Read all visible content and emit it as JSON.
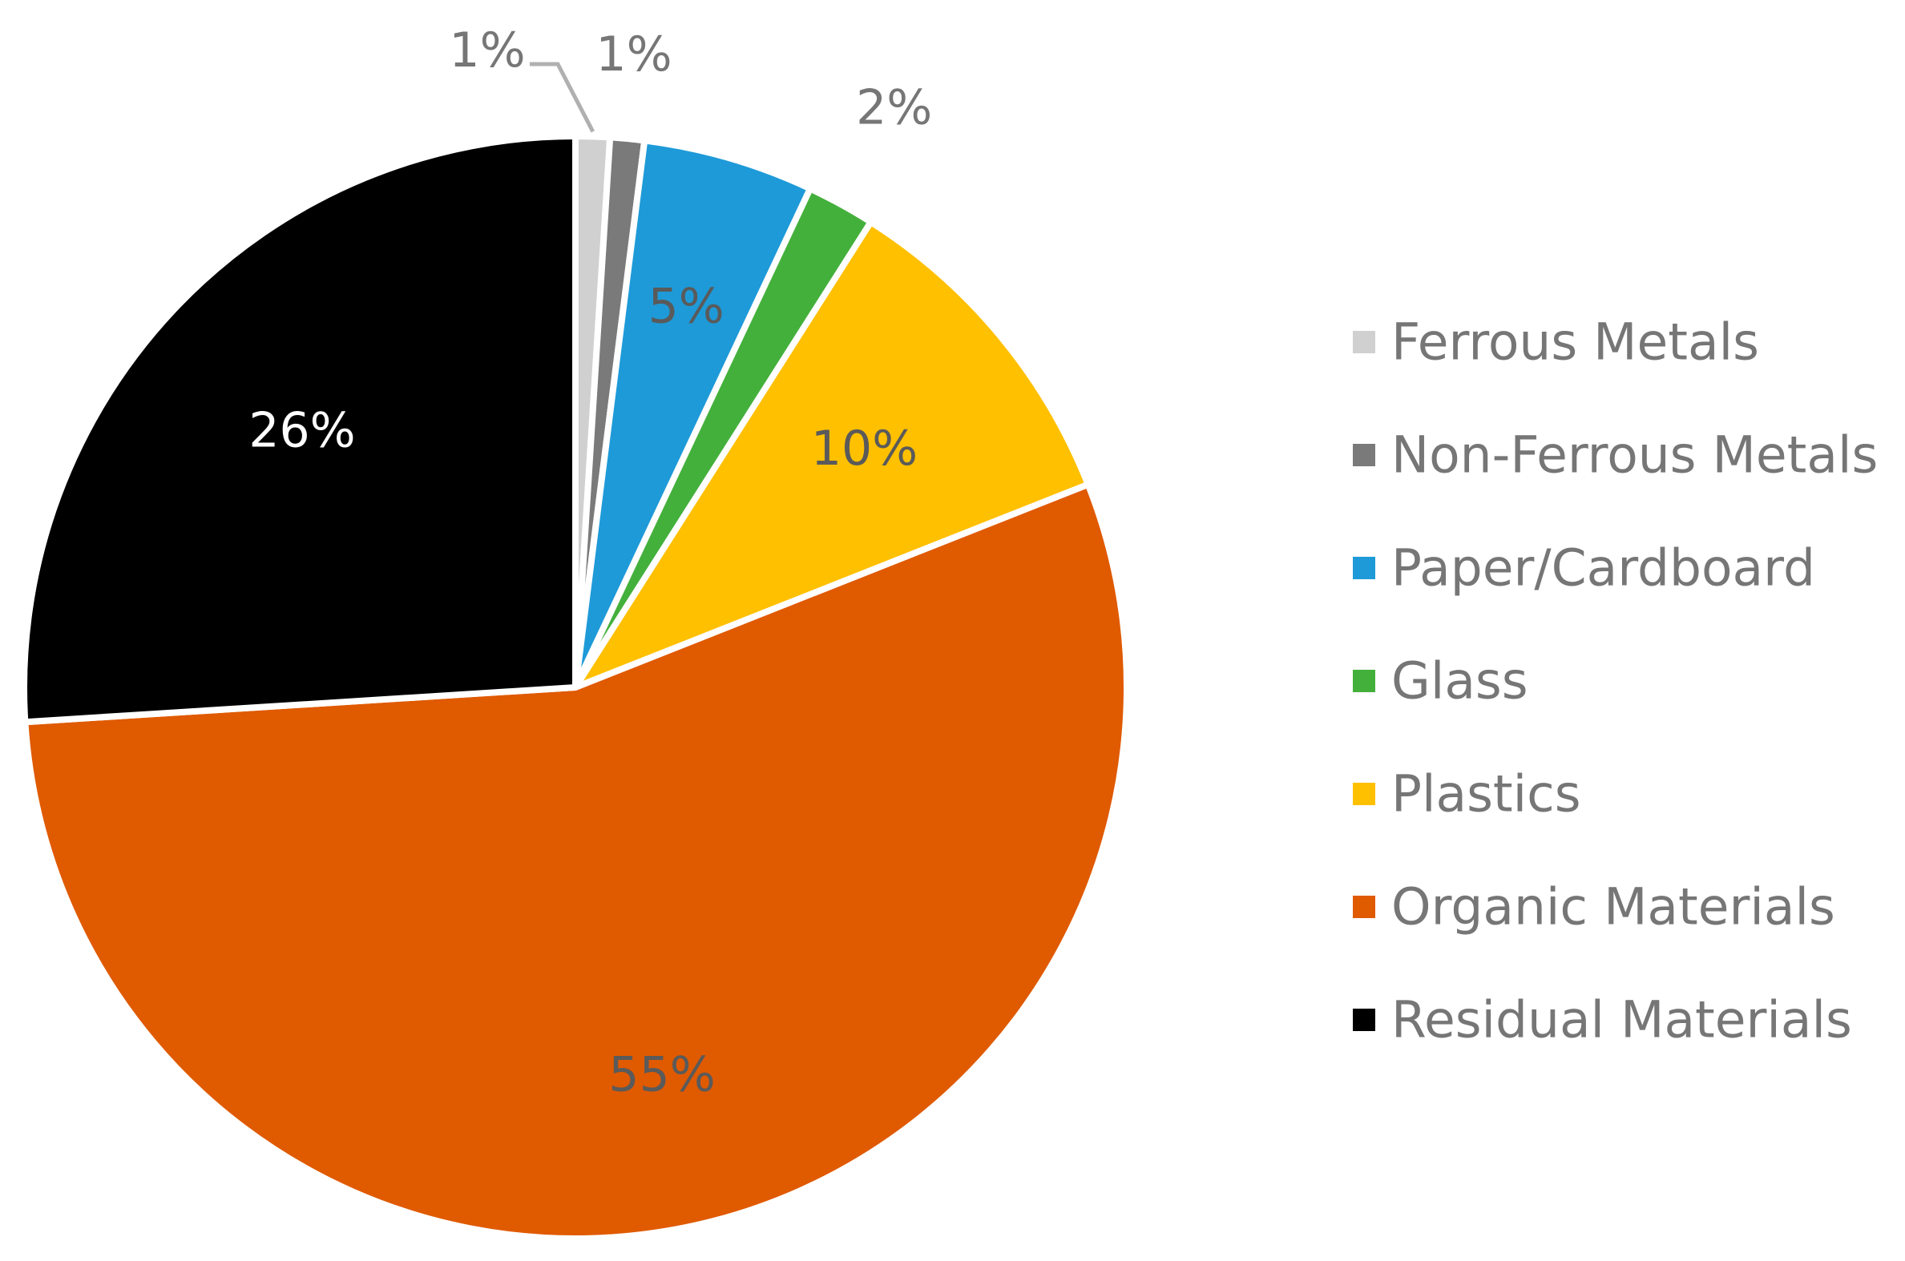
{
  "chart_data": {
    "type": "pie",
    "title": "",
    "legend_position": "right",
    "slices": [
      {
        "name": "Ferrous Metals",
        "value": 1,
        "label": "1%",
        "color": "#d0d0d0",
        "label_color": "#767676"
      },
      {
        "name": "Non-Ferrous Metals",
        "value": 1,
        "label": "1%",
        "color": "#7a7a7a",
        "label_color": "#767676"
      },
      {
        "name": "Paper/Cardboard",
        "value": 5,
        "label": "5%",
        "color": "#1e9ad8",
        "label_color": "#5a5a5a"
      },
      {
        "name": "Glass",
        "value": 2,
        "label": "2%",
        "color": "#44b03c",
        "label_color": "#767676"
      },
      {
        "name": "Plastics",
        "value": 10,
        "label": "10%",
        "color": "#ffc000",
        "label_color": "#5a5a5a"
      },
      {
        "name": "Organic Materials",
        "value": 55,
        "label": "55%",
        "color": "#e05a00",
        "label_color": "#5a5a5a"
      },
      {
        "name": "Residual Materials",
        "value": 26,
        "label": "26%",
        "color": "#000000",
        "label_color": "#ffffff"
      }
    ]
  }
}
